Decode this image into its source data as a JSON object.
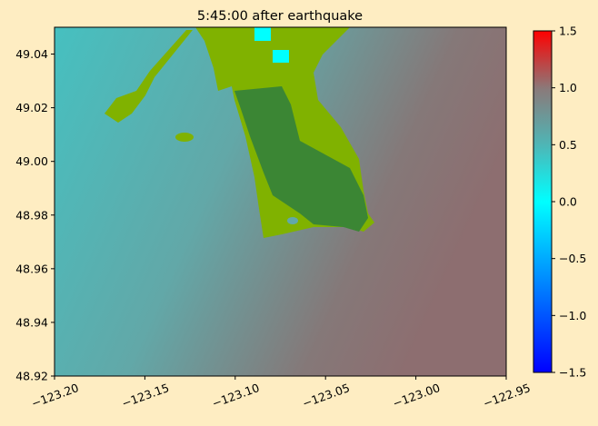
{
  "chart_data": {
    "type": "heatmap",
    "title": "5:45:00 after earthquake",
    "xlim": [
      -123.2,
      -122.95
    ],
    "xticks": [
      {
        "value": -123.2,
        "label": "−123.20"
      },
      {
        "value": -123.15,
        "label": "−123.15"
      },
      {
        "value": -123.1,
        "label": "−123.10"
      },
      {
        "value": -123.05,
        "label": "−123.05"
      },
      {
        "value": -123.0,
        "label": "−123.00"
      },
      {
        "value": -122.95,
        "label": "−122.95"
      }
    ],
    "ylim": [
      48.92,
      49.05
    ],
    "yticks": [
      48.92,
      48.94,
      48.96,
      48.98,
      {
        "value": 49.0,
        "label": "49.00"
      },
      49.02,
      49.04
    ],
    "colorbar": {
      "lim": [
        -1.5,
        1.5
      ],
      "ticks": [
        {
          "value": -1.5,
          "label": "−1.5"
        },
        {
          "value": -1.0,
          "label": "−1.0"
        },
        {
          "value": -0.5,
          "label": "−0.5"
        },
        {
          "value": 0.0,
          "label": "0.0"
        },
        0.5,
        {
          "value": 1.0,
          "label": "1.0"
        },
        1.5
      ]
    }
  }
}
